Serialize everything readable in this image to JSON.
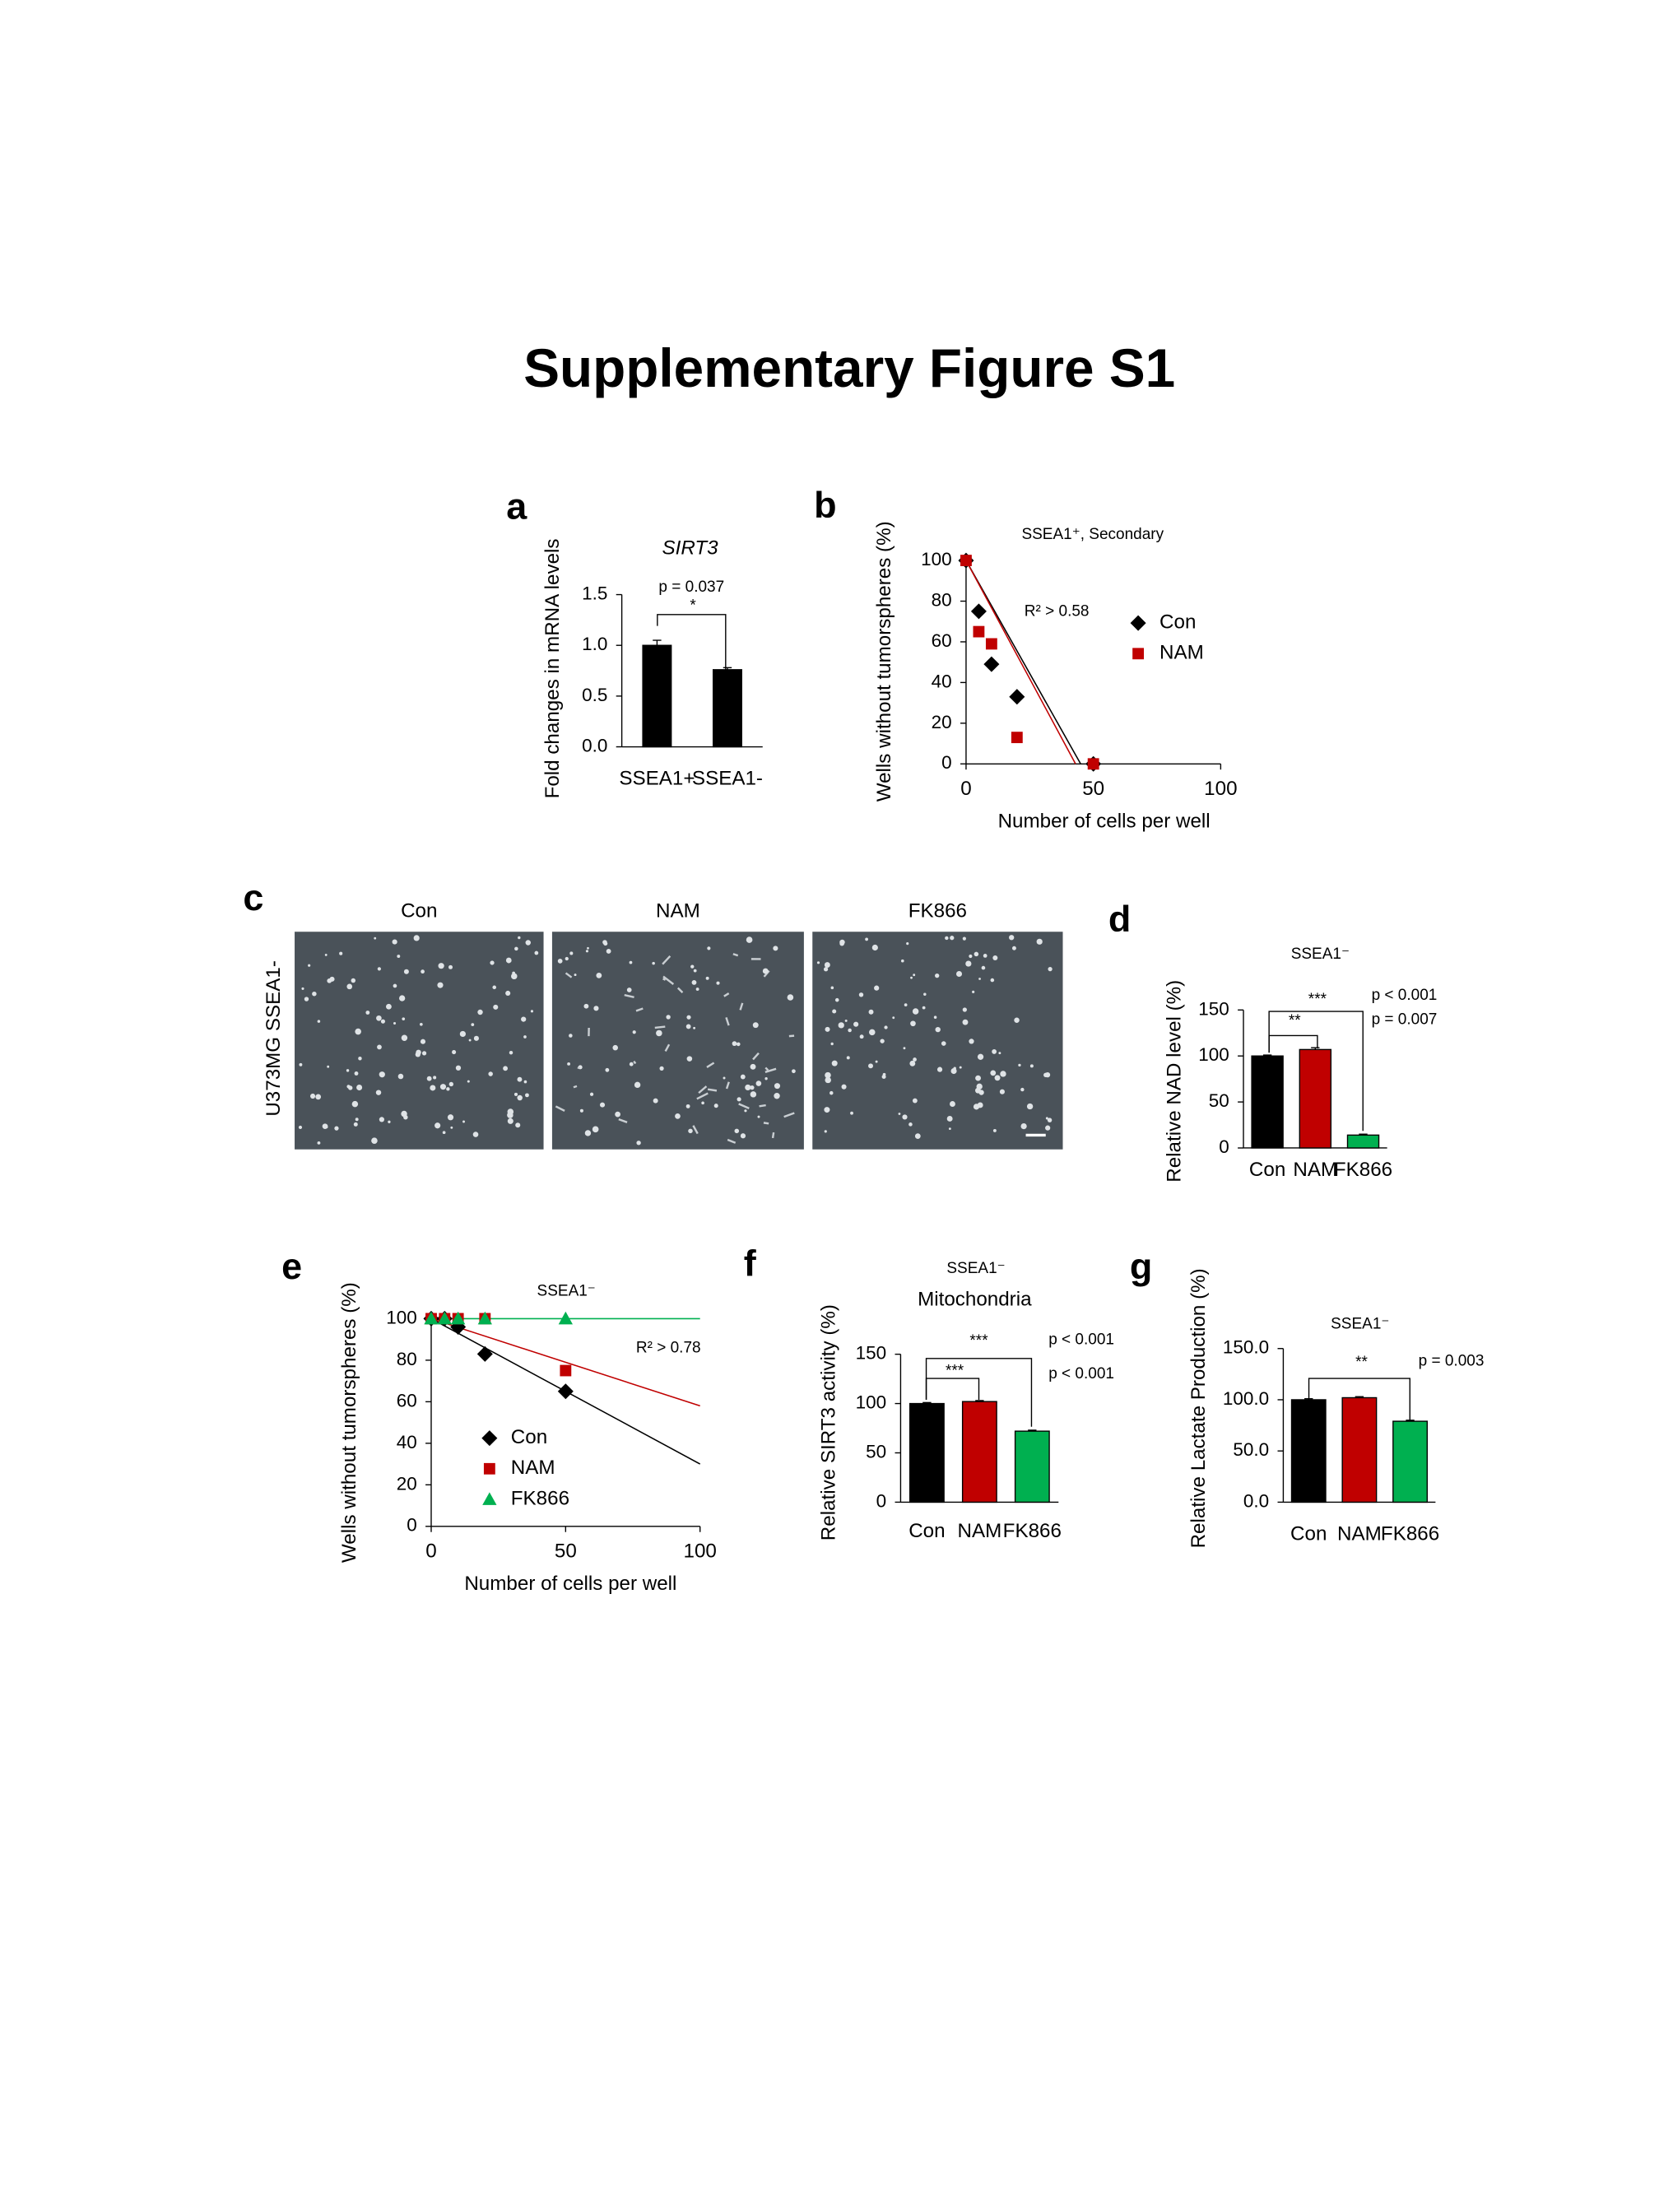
{
  "title": "Supplementary Figure S1",
  "image_panel": {
    "panel": "c",
    "row_label": "U373MG SSEA1-",
    "columns": [
      "Con",
      "NAM",
      "FK866"
    ]
  },
  "chart_data": [
    {
      "panel": "a",
      "type": "bar",
      "title": "SIRT3",
      "y_label": "Fold changes in mRNA levels",
      "categories": [
        "SSEA1+",
        "SSEA1-"
      ],
      "values": [
        1.0,
        0.76
      ],
      "errors": [
        0.05,
        0.02
      ],
      "colors": [
        "#000000",
        "#000000"
      ],
      "ylim": [
        0,
        1.5
      ],
      "yticks": [
        {
          "value": 0,
          "label": "0.0"
        },
        {
          "value": 0.5,
          "label": "0.5"
        },
        {
          "value": 1,
          "label": "1.0"
        },
        {
          "value": 1.5,
          "label": "1.5"
        }
      ],
      "annotations": [
        "p = 0.037",
        "*"
      ]
    },
    {
      "panel": "b",
      "type": "scatter",
      "title": "SSEA1⁺, Secondary",
      "x_label": "Number of cells per well",
      "y_label": "Wells without tumorspheres (%)",
      "series": [
        {
          "name": "Con",
          "color": "#000000",
          "marker": "diamond",
          "x": [
            0,
            5,
            10,
            20,
            50
          ],
          "values": [
            100,
            75,
            49,
            33,
            0
          ]
        },
        {
          "name": "NAM",
          "color": "#c00000",
          "marker": "square",
          "x": [
            0,
            5,
            10,
            20,
            50
          ],
          "values": [
            100,
            65,
            59,
            13,
            0
          ]
        }
      ],
      "trendlines": [
        {
          "color": "#000000",
          "x": [
            0,
            45
          ],
          "values": [
            100,
            0
          ]
        },
        {
          "color": "#c00000",
          "x": [
            0,
            43
          ],
          "values": [
            100,
            0
          ]
        }
      ],
      "xlim": [
        0,
        100
      ],
      "xticks": [
        0,
        50,
        100
      ],
      "ylim": [
        0,
        100
      ],
      "yticks": [
        0,
        20,
        40,
        60,
        80,
        100
      ],
      "legend": "right",
      "annotations": [
        "R² > 0.58"
      ]
    },
    {
      "panel": "d",
      "type": "bar",
      "title": "SSEA1⁻",
      "y_label": "Relative NAD level (%)",
      "categories": [
        "Con",
        "NAM",
        "FK866"
      ],
      "values": [
        100,
        107,
        14
      ],
      "errors": [
        1,
        2,
        1
      ],
      "colors": [
        "#000000",
        "#c00000",
        "#00b050"
      ],
      "ylim": [
        0,
        150
      ],
      "yticks": [
        0,
        50,
        100,
        150
      ],
      "annotations": [
        "***",
        "**",
        "p < 0.001",
        "p = 0.007"
      ]
    },
    {
      "panel": "e",
      "type": "scatter",
      "title": "SSEA1⁻",
      "x_label": "Number of cells per well",
      "y_label": "Wells without tumorspheres (%)",
      "series": [
        {
          "name": "Con",
          "color": "#000000",
          "marker": "diamond",
          "x": [
            0,
            5,
            10,
            20,
            50
          ],
          "values": [
            100,
            100,
            96,
            83,
            65
          ]
        },
        {
          "name": "NAM",
          "color": "#c00000",
          "marker": "square",
          "x": [
            0,
            5,
            10,
            20,
            50
          ],
          "values": [
            100,
            100,
            100,
            100,
            75
          ]
        },
        {
          "name": "FK866",
          "color": "#00b050",
          "marker": "triangle",
          "x": [
            0,
            5,
            10,
            20,
            50
          ],
          "values": [
            100,
            100,
            100,
            100,
            100
          ]
        }
      ],
      "trendlines": [
        {
          "color": "#000000",
          "x": [
            0,
            100
          ],
          "values": [
            100,
            30
          ]
        },
        {
          "color": "#c00000",
          "x": [
            0,
            100
          ],
          "values": [
            100,
            58
          ]
        },
        {
          "color": "#00b050",
          "x": [
            0,
            100
          ],
          "values": [
            100,
            100
          ]
        }
      ],
      "xlim": [
        0,
        100
      ],
      "xticks": [
        0,
        50,
        100
      ],
      "ylim": [
        0,
        100
      ],
      "yticks": [
        0,
        20,
        40,
        60,
        80,
        100
      ],
      "legend": "lower left",
      "annotations": [
        "R² > 0.78"
      ]
    },
    {
      "panel": "f",
      "type": "bar",
      "title": "SSEA1⁻",
      "subtitle": "Mitochondria",
      "y_label": "Relative SIRT3 activity (%)",
      "categories": [
        "Con",
        "NAM",
        "FK866"
      ],
      "values": [
        100,
        102,
        72
      ],
      "errors": [
        1,
        1,
        1
      ],
      "colors": [
        "#000000",
        "#c00000",
        "#00b050"
      ],
      "ylim": [
        0,
        150
      ],
      "yticks": [
        0,
        50,
        100,
        150
      ],
      "annotations": [
        "***",
        "***",
        "p < 0.001",
        "p < 0.001"
      ]
    },
    {
      "panel": "g",
      "type": "bar",
      "title": "SSEA1⁻",
      "y_label": "Relative  Lactate Production (%)",
      "categories": [
        "Con",
        "NAM",
        "FK866"
      ],
      "values": [
        100,
        102,
        79
      ],
      "errors": [
        1,
        1,
        1
      ],
      "colors": [
        "#000000",
        "#c00000",
        "#00b050"
      ],
      "ylim": [
        0,
        150
      ],
      "yticks": [
        {
          "value": 0,
          "label": "0.0"
        },
        {
          "value": 50,
          "label": "50.0"
        },
        {
          "value": 100,
          "label": "100.0"
        },
        {
          "value": 150,
          "label": "150.0"
        }
      ],
      "annotations": [
        "**",
        "p = 0.003"
      ]
    }
  ]
}
